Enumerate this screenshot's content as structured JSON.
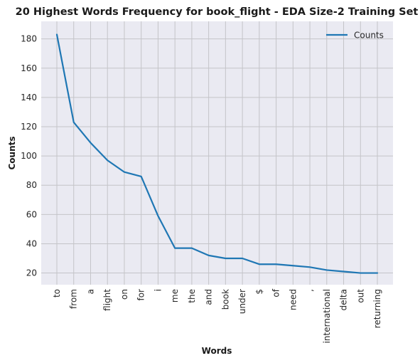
{
  "chart_data": {
    "type": "line",
    "title": "20 Highest Words Frequency for book_flight - EDA Size-2 Training Set",
    "xlabel": "Words",
    "ylabel": "Counts",
    "categories": [
      "to",
      "from",
      "a",
      "flight",
      "on",
      "for",
      "i",
      "me",
      "the",
      "and",
      "book",
      "under",
      "$",
      "of",
      "need",
      ",",
      "international",
      "delta",
      "out",
      "returning"
    ],
    "series": [
      {
        "name": "Counts",
        "color": "#1f77b4",
        "values": [
          183,
          123,
          109,
          97,
          89,
          86,
          59,
          37,
          37,
          32,
          30,
          30,
          26,
          26,
          25,
          24,
          22,
          21,
          20,
          20
        ]
      }
    ],
    "ylim": [
      12,
      192
    ],
    "yticks": [
      20,
      40,
      60,
      80,
      100,
      120,
      140,
      160,
      180
    ],
    "grid": true,
    "legend": "top-right",
    "colors": {
      "plot_bg": "#eaeaf2",
      "grid": "#c4c4c8"
    }
  }
}
